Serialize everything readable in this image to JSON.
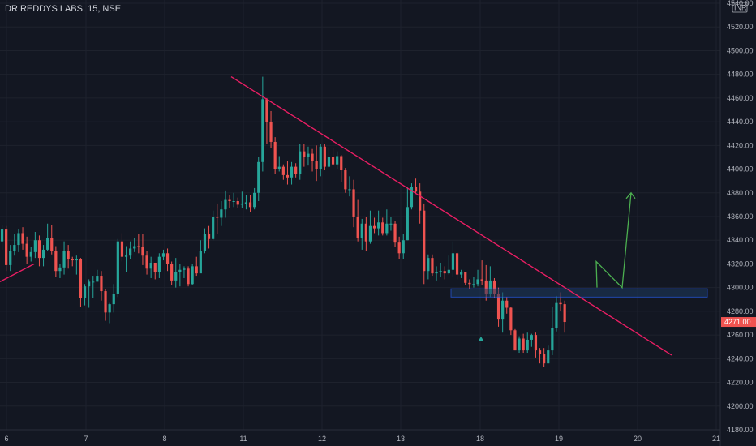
{
  "header": {
    "title": "DR REDDYS LABS, 15, NSE"
  },
  "currency_badge": "INR",
  "colors": {
    "background": "#131722",
    "up": "#26a69a",
    "down": "#ef5350",
    "trendline": "#e91e63",
    "projection": "#4caf50",
    "zone_fill": "#1e3a5f",
    "zone_stroke": "#2962ff",
    "grid": "#1e222d",
    "axis_text": "#b2b5be",
    "price_tag": "#ef5350"
  },
  "chart_data": {
    "type": "candlestick",
    "title": "DR REDDYS LABS, 15, NSE",
    "currency": "INR",
    "ylim": [
      4180,
      4540
    ],
    "y_ticks": [
      "4180.00",
      "4200.00",
      "4220.00",
      "4240.00",
      "4260.00",
      "4280.00",
      "4300.00",
      "4320.00",
      "4340.00",
      "4360.00",
      "4380.00",
      "4400.00",
      "4420.00",
      "4440.00",
      "4460.00",
      "4480.00",
      "4500.00",
      "4520.00",
      "4540.00"
    ],
    "x_ticks": [
      "6",
      "7",
      "8",
      "11",
      "12",
      "13",
      "18",
      "19",
      "20",
      "21"
    ],
    "last_price": "4271.00",
    "annotations": {
      "descending_trendline": {
        "from": [
          "11",
          4478
        ],
        "to": [
          "20+",
          4243
        ]
      },
      "support_resistance_zone": {
        "low": 4292,
        "high": 4299
      },
      "projected_path": [
        4300,
        4322,
        4300,
        4380
      ],
      "left_rising_trendline": {
        "from": 4305,
        "to": 4320
      }
    },
    "candles_key": [
      "open",
      "close",
      "high",
      "low"
    ],
    "candles": [
      [
        4339,
        4349,
        4353,
        4332
      ],
      [
        4349,
        4319,
        4352,
        4314
      ],
      [
        4319,
        4331,
        4336,
        4314
      ],
      [
        4331,
        4336,
        4345,
        4327
      ],
      [
        4336,
        4346,
        4349,
        4330
      ],
      [
        4346,
        4337,
        4351,
        4332
      ],
      [
        4337,
        4326,
        4343,
        4320
      ],
      [
        4326,
        4330,
        4334,
        4322
      ],
      [
        4330,
        4340,
        4347,
        4325
      ],
      [
        4340,
        4325,
        4344,
        4318
      ],
      [
        4325,
        4332,
        4336,
        4318
      ],
      [
        4332,
        4342,
        4354,
        4331
      ],
      [
        4342,
        4331,
        4353,
        4328
      ],
      [
        4331,
        4314,
        4335,
        4309
      ],
      [
        4314,
        4317,
        4320,
        4308
      ],
      [
        4317,
        4331,
        4339,
        4311
      ],
      [
        4331,
        4324,
        4336,
        4316
      ],
      [
        4324,
        4323,
        4326,
        4318
      ],
      [
        4323,
        4324,
        4327,
        4311
      ],
      [
        4324,
        4291,
        4325,
        4284
      ],
      [
        4291,
        4301,
        4303,
        4285
      ],
      [
        4301,
        4305,
        4307,
        4283
      ],
      [
        4305,
        4305,
        4310,
        4291
      ],
      [
        4305,
        4310,
        4315,
        4305
      ],
      [
        4310,
        4297,
        4314,
        4289
      ],
      [
        4297,
        4279,
        4299,
        4272
      ],
      [
        4279,
        4286,
        4287,
        4270
      ],
      [
        4286,
        4295,
        4303,
        4279
      ],
      [
        4295,
        4339,
        4341,
        4292
      ],
      [
        4339,
        4326,
        4346,
        4322
      ],
      [
        4326,
        4327,
        4335,
        4313
      ],
      [
        4327,
        4333,
        4339,
        4324
      ],
      [
        4333,
        4335,
        4342,
        4330
      ],
      [
        4335,
        4334,
        4345,
        4329
      ],
      [
        4334,
        4327,
        4345,
        4319
      ],
      [
        4327,
        4316,
        4331,
        4311
      ],
      [
        4316,
        4321,
        4326,
        4308
      ],
      [
        4321,
        4313,
        4321,
        4307
      ],
      [
        4313,
        4326,
        4329,
        4308
      ],
      [
        4326,
        4329,
        4332,
        4323
      ],
      [
        4329,
        4320,
        4333,
        4314
      ],
      [
        4320,
        4306,
        4322,
        4302
      ],
      [
        4306,
        4313,
        4325,
        4300
      ],
      [
        4313,
        4315,
        4320,
        4301
      ],
      [
        4315,
        4316,
        4318,
        4308
      ],
      [
        4316,
        4303,
        4318,
        4301
      ],
      [
        4303,
        4318,
        4320,
        4302
      ],
      [
        4318,
        4312,
        4326,
        4310
      ],
      [
        4312,
        4331,
        4340,
        4329
      ],
      [
        4331,
        4345,
        4350,
        4329
      ],
      [
        4345,
        4341,
        4352,
        4333
      ],
      [
        4341,
        4360,
        4365,
        4340
      ],
      [
        4360,
        4359,
        4371,
        4345
      ],
      [
        4359,
        4366,
        4373,
        4352
      ],
      [
        4366,
        4374,
        4382,
        4359
      ],
      [
        4374,
        4373,
        4378,
        4367
      ],
      [
        4373,
        4373,
        4380,
        4368
      ],
      [
        4373,
        4370,
        4376,
        4367
      ],
      [
        4370,
        4371,
        4381,
        4367
      ],
      [
        4371,
        4372,
        4378,
        4366
      ],
      [
        4372,
        4368,
        4378,
        4364
      ],
      [
        4368,
        4380,
        4384,
        4366
      ],
      [
        4380,
        4406,
        4410,
        4373
      ],
      [
        4406,
        4459,
        4478,
        4398
      ],
      [
        4459,
        4440,
        4460,
        4421
      ],
      [
        4440,
        4423,
        4449,
        4418
      ],
      [
        4423,
        4400,
        4427,
        4396
      ],
      [
        4400,
        4402,
        4411,
        4398
      ],
      [
        4402,
        4395,
        4404,
        4391
      ],
      [
        4395,
        4393,
        4407,
        4387
      ],
      [
        4393,
        4402,
        4406,
        4387
      ],
      [
        4402,
        4396,
        4405,
        4393
      ],
      [
        4396,
        4415,
        4421,
        4391
      ],
      [
        4415,
        4410,
        4421,
        4402
      ],
      [
        4410,
        4413,
        4419,
        4403
      ],
      [
        4413,
        4407,
        4417,
        4398
      ],
      [
        4407,
        4400,
        4420,
        4390
      ],
      [
        4400,
        4419,
        4421,
        4394
      ],
      [
        4419,
        4402,
        4421,
        4399
      ],
      [
        4402,
        4410,
        4418,
        4401
      ],
      [
        4410,
        4404,
        4418,
        4403
      ],
      [
        4404,
        4411,
        4415,
        4400
      ],
      [
        4411,
        4399,
        4412,
        4389
      ],
      [
        4399,
        4383,
        4401,
        4380
      ],
      [
        4383,
        4383,
        4394,
        4377
      ],
      [
        4383,
        4360,
        4391,
        4351
      ],
      [
        4360,
        4342,
        4374,
        4339
      ],
      [
        4342,
        4354,
        4358,
        4332
      ],
      [
        4354,
        4339,
        4360,
        4331
      ],
      [
        4339,
        4352,
        4365,
        4337
      ],
      [
        4352,
        4350,
        4359,
        4346
      ],
      [
        4350,
        4355,
        4365,
        4344
      ],
      [
        4355,
        4346,
        4359,
        4344
      ],
      [
        4346,
        4354,
        4366,
        4344
      ],
      [
        4354,
        4354,
        4360,
        4348
      ],
      [
        4354,
        4338,
        4356,
        4334
      ],
      [
        4338,
        4329,
        4343,
        4324
      ],
      [
        4329,
        4340,
        4345,
        4324
      ],
      [
        4340,
        4368,
        4385,
        4340
      ],
      [
        4368,
        4385,
        4388,
        4366
      ],
      [
        4385,
        4381,
        4392,
        4379
      ],
      [
        4381,
        4365,
        4388,
        4354
      ],
      [
        4365,
        4314,
        4371,
        4303
      ],
      [
        4314,
        4325,
        4328,
        4307
      ],
      [
        4325,
        4312,
        4328,
        4310
      ],
      [
        4312,
        4313,
        4318,
        4306
      ],
      [
        4313,
        4314,
        4321,
        4309
      ],
      [
        4314,
        4312,
        4318,
        4307
      ],
      [
        4312,
        4315,
        4327,
        4311
      ],
      [
        4315,
        4329,
        4339,
        4309
      ],
      [
        4329,
        4311,
        4330,
        4307
      ],
      [
        4311,
        4313,
        4315,
        4308
      ],
      [
        4313,
        4304,
        4313,
        4302
      ],
      [
        4304,
        4303,
        4307,
        4299
      ],
      [
        4303,
        4303,
        4309,
        4300
      ],
      [
        4303,
        4307,
        4315,
        4301
      ],
      [
        4307,
        4306,
        4323,
        4302
      ],
      [
        4306,
        4295,
        4319,
        4289
      ],
      [
        4295,
        4306,
        4318,
        4292
      ],
      [
        4306,
        4295,
        4308,
        4291
      ],
      [
        4295,
        4273,
        4300,
        4267
      ],
      [
        4273,
        4289,
        4296,
        4262
      ],
      [
        4289,
        4283,
        4292,
        4278
      ],
      [
        4283,
        4264,
        4284,
        4260
      ],
      [
        4264,
        4247,
        4265,
        4247
      ],
      [
        4247,
        4257,
        4259,
        4245
      ],
      [
        4257,
        4247,
        4261,
        4245
      ],
      [
        4247,
        4256,
        4262,
        4245
      ],
      [
        4256,
        4260,
        4261,
        4250
      ],
      [
        4260,
        4247,
        4262,
        4241
      ],
      [
        4247,
        4244,
        4249,
        4236
      ],
      [
        4244,
        4236,
        4249,
        4233
      ],
      [
        4236,
        4247,
        4251,
        4236
      ],
      [
        4247,
        4266,
        4284,
        4243
      ],
      [
        4266,
        4287,
        4293,
        4263
      ],
      [
        4287,
        4286,
        4296,
        4280
      ],
      [
        4286,
        4271,
        4289,
        4262
      ]
    ]
  }
}
